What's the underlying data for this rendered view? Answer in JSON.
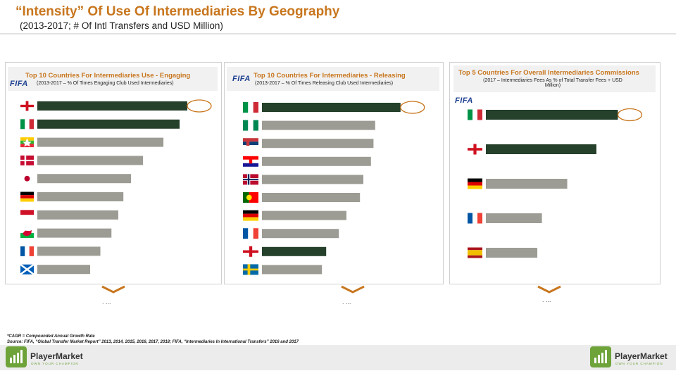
{
  "header": {
    "title": "“Intensity” Of Use Of Intermediaries By Geography",
    "subtitle": "(2013-2017; # Of Intl Transfers and USD Million)"
  },
  "panels": [
    {
      "fifa_label": "FIFA",
      "continuation": ". ..."
    },
    {
      "fifa_label": "FIFA",
      "continuation": ". ..."
    },
    {
      "fifa_label": "FIFA",
      "continuation": ". ..."
    }
  ],
  "colors": {
    "highlight": "#25402b",
    "other": "#9c9c94",
    "accent": "#c8761e",
    "circle": "#c8761e"
  },
  "chart_data": [
    {
      "type": "bar",
      "title": "Top 10 Countries For Intermediaries Use - Engaging",
      "subtitle": "(2013-2017 – % Of Times Engaging Club Used Intermediaries)",
      "categories": [
        "england",
        "italy",
        "myanmar",
        "denmark",
        "japan",
        "germany",
        "indonesia",
        "wales",
        "france",
        "scotland"
      ],
      "values": [
        88,
        83.5,
        74,
        62,
        55,
        50.5,
        47.5,
        43.5,
        37,
        31
      ],
      "highlighted": [
        0,
        1
      ],
      "circled": [
        0
      ],
      "xlim": [
        0,
        100
      ]
    },
    {
      "type": "bar",
      "title": "Top 10 Countries For Intermediaries - Releasing",
      "subtitle": "(2013-2017 – % Of Times Releasing Club Used Intermediaries)",
      "categories": [
        "italy",
        "nigeria",
        "serbia",
        "croatia",
        "norway",
        "portugal",
        "germany",
        "france",
        "england",
        "sweden"
      ],
      "values": [
        82,
        67,
        66,
        64.5,
        60,
        58,
        50,
        45.5,
        38,
        35.5
      ],
      "highlighted": [
        0,
        8
      ],
      "circled": [
        0
      ],
      "xlim": [
        0,
        100
      ]
    },
    {
      "type": "bar",
      "title": "Top 5 Countries For Overall Intermediaries Commissions",
      "subtitle": "(2017 – Intermediaries Fees As % of Total Transfer Fees + USD Million)",
      "categories": [
        "italy",
        "england",
        "germany",
        "france",
        "spain"
      ],
      "values": [
        86,
        72,
        53,
        36.5,
        33.5
      ],
      "highlighted": [
        0,
        1
      ],
      "circled": [
        0
      ],
      "xlim": [
        0,
        100
      ]
    }
  ],
  "notes": {
    "line1": "*CAGR = Compounded Annual Growth Rate",
    "line2": "Source: FIFA, “Global Transfer Market Report” 2013, 2014, 2015, 2016, 2017, 2018; FIFA, “Intermediaries In International Transfers” 2016 and 2017"
  },
  "footer": {
    "brand": "PlayerMarket",
    "tagline": "OWN YOUR CHAMPION",
    "logo_icon": "bar-chart-icon"
  }
}
